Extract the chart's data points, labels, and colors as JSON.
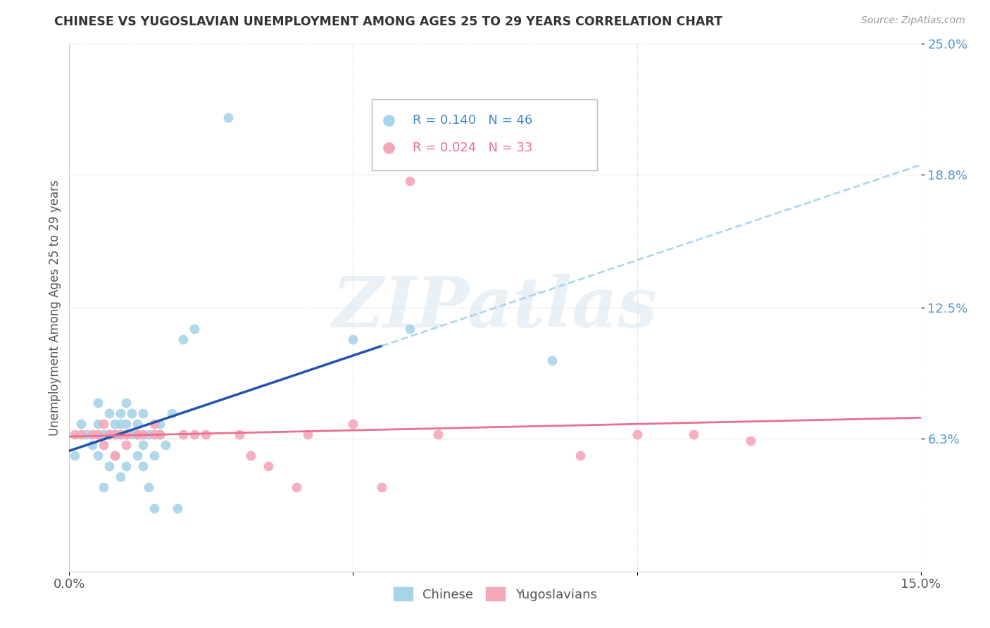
{
  "title": "CHINESE VS YUGOSLAVIAN UNEMPLOYMENT AMONG AGES 25 TO 29 YEARS CORRELATION CHART",
  "source": "Source: ZipAtlas.com",
  "ylabel": "Unemployment Among Ages 25 to 29 years",
  "xlim": [
    0.0,
    0.15
  ],
  "ylim": [
    0.0,
    0.25
  ],
  "xticks": [
    0.0,
    0.05,
    0.1,
    0.15
  ],
  "xticklabels": [
    "0.0%",
    "",
    "",
    "15.0%"
  ],
  "ytick_positions": [
    0.063,
    0.125,
    0.188,
    0.25
  ],
  "ytick_labels": [
    "6.3%",
    "12.5%",
    "18.8%",
    "25.0%"
  ],
  "legend_r_chinese": "R = 0.140",
  "legend_n_chinese": "N = 46",
  "legend_r_yugoslav": "R = 0.024",
  "legend_n_yugoslav": "N = 33",
  "color_chinese": "#a8d4e8",
  "color_yugoslav": "#f4a7b9",
  "color_line_chinese": "#2255aa",
  "color_line_yugoslav": "#e87090",
  "color_dash_chinese": "#a8d4e8",
  "watermark_text": "ZIPatlas",
  "chinese_x": [
    0.001,
    0.002,
    0.003,
    0.004,
    0.005,
    0.005,
    0.005,
    0.006,
    0.006,
    0.007,
    0.007,
    0.007,
    0.008,
    0.008,
    0.008,
    0.009,
    0.009,
    0.009,
    0.009,
    0.01,
    0.01,
    0.01,
    0.01,
    0.011,
    0.011,
    0.012,
    0.012,
    0.012,
    0.013,
    0.013,
    0.013,
    0.014,
    0.014,
    0.015,
    0.015,
    0.016,
    0.016,
    0.017,
    0.018,
    0.019,
    0.02,
    0.022,
    0.028,
    0.05,
    0.06,
    0.085
  ],
  "chinese_y": [
    0.055,
    0.07,
    0.065,
    0.06,
    0.08,
    0.07,
    0.055,
    0.065,
    0.04,
    0.075,
    0.065,
    0.05,
    0.07,
    0.065,
    0.055,
    0.075,
    0.07,
    0.065,
    0.045,
    0.08,
    0.07,
    0.065,
    0.05,
    0.075,
    0.065,
    0.07,
    0.065,
    0.055,
    0.075,
    0.06,
    0.05,
    0.065,
    0.04,
    0.055,
    0.03,
    0.07,
    0.065,
    0.06,
    0.075,
    0.03,
    0.11,
    0.115,
    0.215,
    0.11,
    0.115,
    0.1
  ],
  "yugoslav_x": [
    0.001,
    0.002,
    0.004,
    0.005,
    0.006,
    0.006,
    0.007,
    0.008,
    0.008,
    0.009,
    0.01,
    0.01,
    0.012,
    0.013,
    0.015,
    0.015,
    0.016,
    0.02,
    0.022,
    0.024,
    0.03,
    0.032,
    0.035,
    0.04,
    0.042,
    0.05,
    0.055,
    0.06,
    0.065,
    0.09,
    0.1,
    0.11,
    0.12
  ],
  "yugoslav_y": [
    0.065,
    0.065,
    0.065,
    0.065,
    0.07,
    0.06,
    0.065,
    0.065,
    0.055,
    0.065,
    0.065,
    0.06,
    0.065,
    0.065,
    0.07,
    0.065,
    0.065,
    0.065,
    0.065,
    0.065,
    0.065,
    0.055,
    0.05,
    0.04,
    0.065,
    0.07,
    0.04,
    0.185,
    0.065,
    0.055,
    0.065,
    0.065,
    0.062
  ]
}
